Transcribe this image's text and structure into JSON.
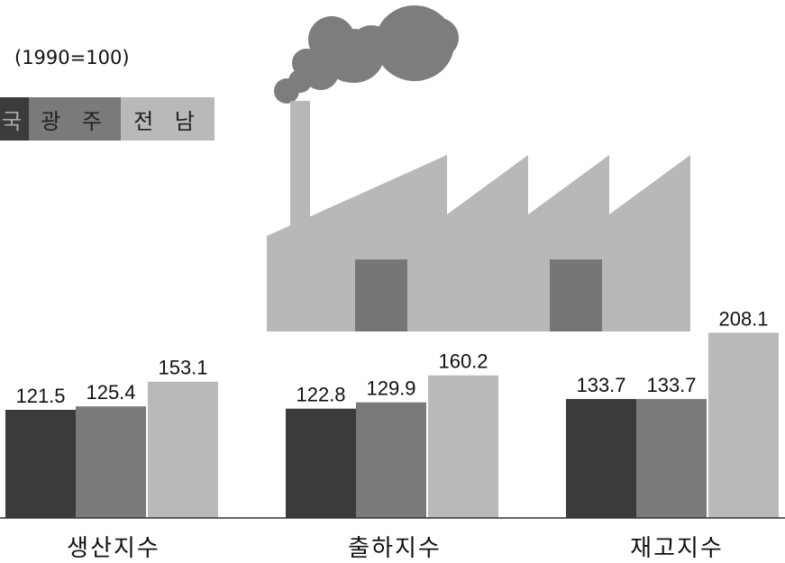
{
  "chart_data": {
    "type": "bar",
    "note": "(1990=100)",
    "categories": [
      "생산지수",
      "출하지수",
      "재고지수"
    ],
    "series": [
      {
        "name": "국",
        "color": "#3b3b3b",
        "values": [
          121.5,
          122.8,
          133.7
        ]
      },
      {
        "name": "광주",
        "color": "#7a7a7a",
        "values": [
          125.4,
          129.9,
          133.7
        ]
      },
      {
        "name": "전남",
        "color": "#b9b9b9",
        "values": [
          153.1,
          160.2,
          208.1
        ]
      }
    ],
    "value_labels": [
      [
        "121.5",
        "125.4",
        "153.1"
      ],
      [
        "122.8",
        "129.9",
        "160.2"
      ],
      [
        "133.7",
        "133.7",
        "208.1"
      ]
    ],
    "legend_placement": "top-left",
    "grid": false
  },
  "legend": {
    "items": [
      "국",
      "광 주",
      "전 남"
    ]
  },
  "categories_display": [
    "생산지수",
    "출하지수",
    "재고지수"
  ],
  "decoration": {
    "factory_color": "#b8b8b8",
    "smoke_color": "#7d7d7d",
    "window_color": "#767676"
  }
}
